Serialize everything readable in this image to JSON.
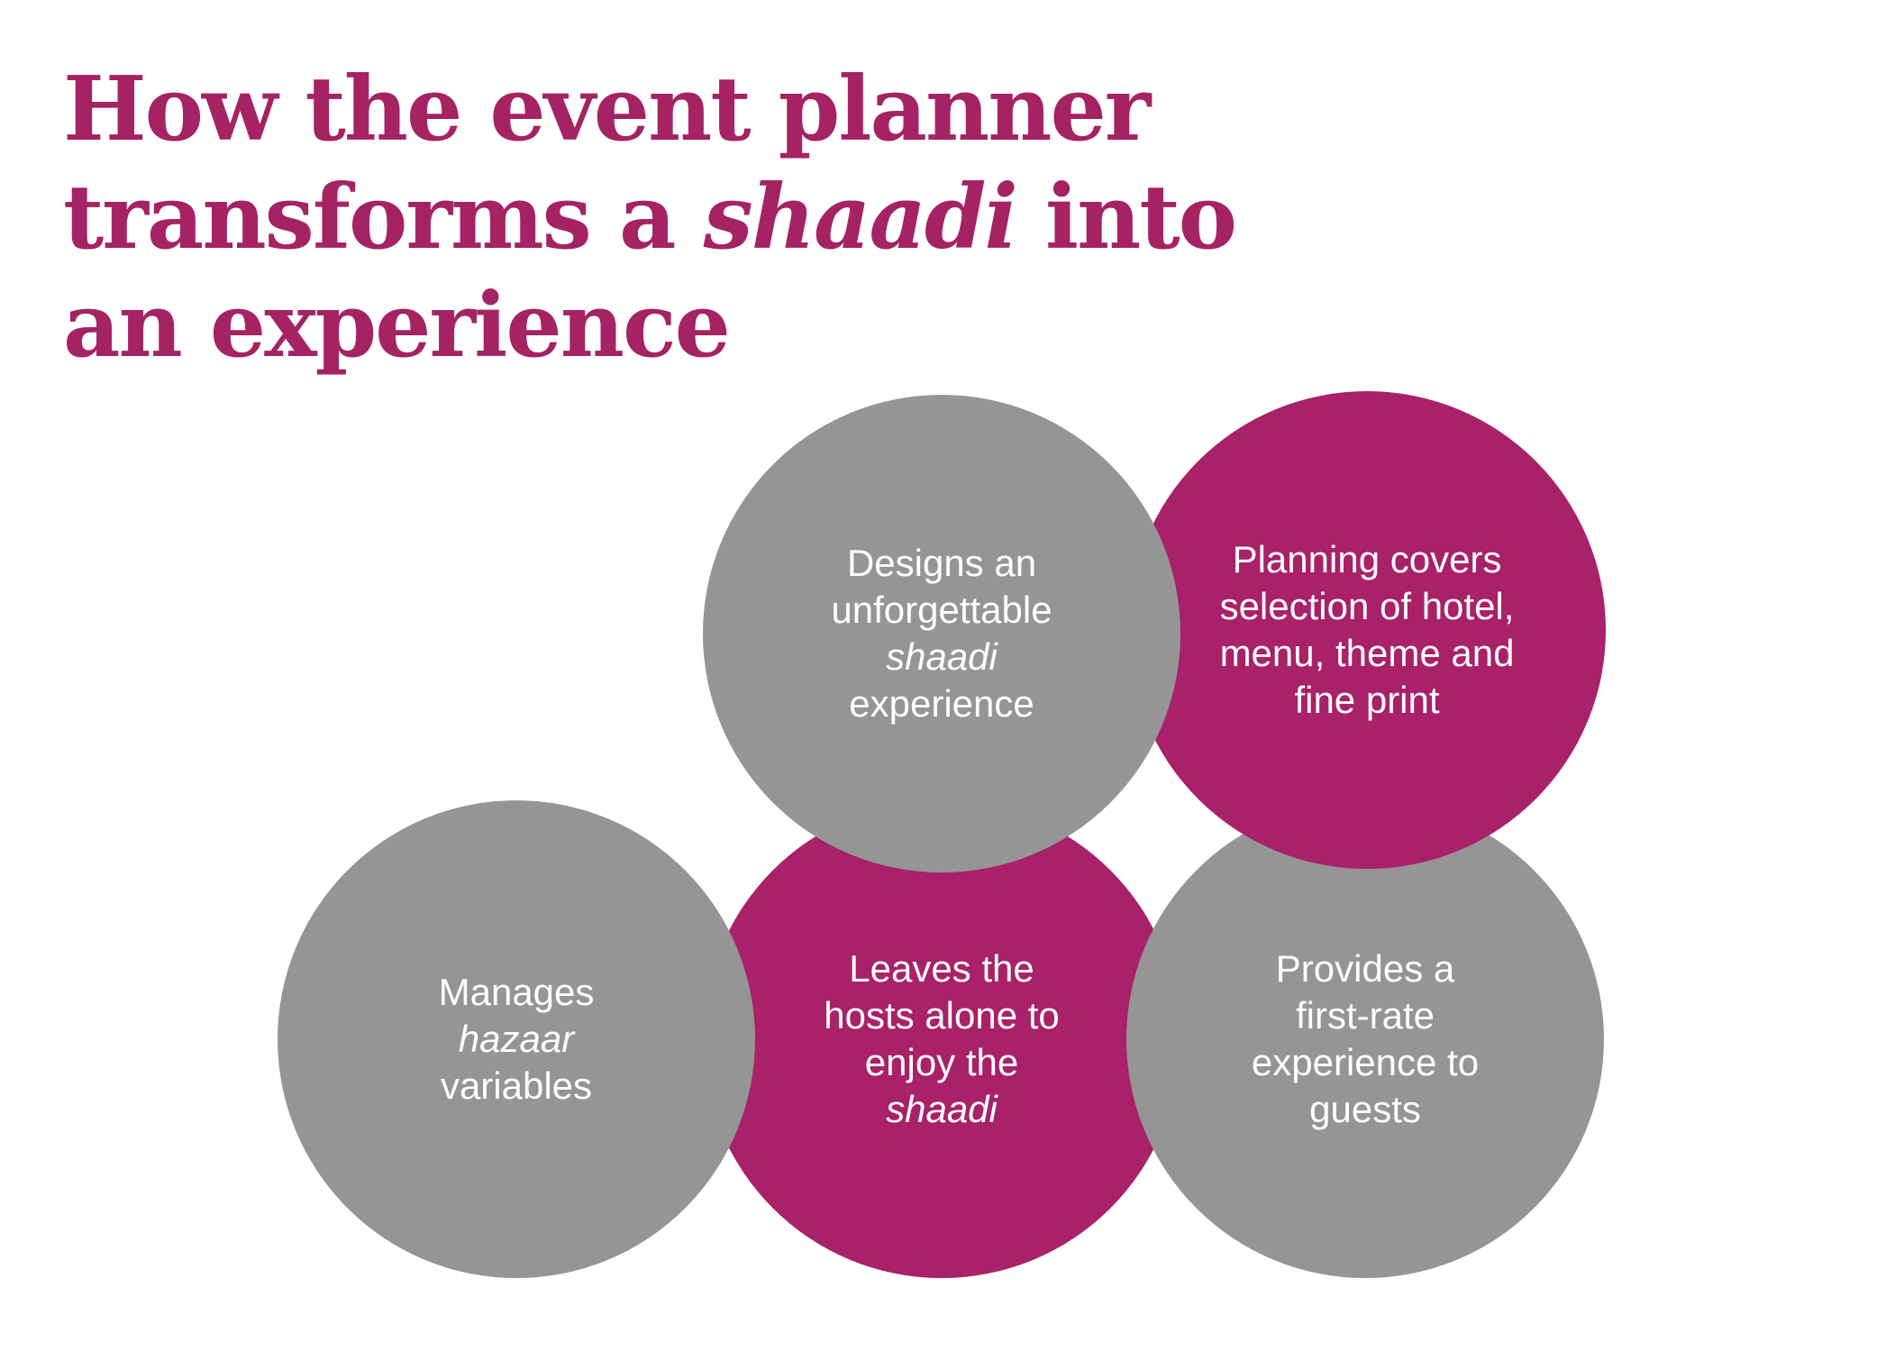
{
  "title": {
    "line1": "How the event planner",
    "line2_before": "transforms a ",
    "line2_italic": "shaadi",
    "line2_after": " into",
    "line3": "an experience"
  },
  "colors": {
    "accent": "#a52363",
    "magenta_circle": "#a92168",
    "gray_circle": "#959595",
    "circle_text": "#ffffff"
  },
  "circles": {
    "designs": {
      "line1": "Designs an",
      "line2": "unforgettable",
      "line3": "shaadi",
      "line4": "experience"
    },
    "planning": {
      "line1": "Planning covers",
      "line2": "selection of hotel,",
      "line3": "menu, theme and",
      "line4": "fine print"
    },
    "manages": {
      "line1": "Manages",
      "line2": "hazaar",
      "line3": "variables"
    },
    "leaves": {
      "line1": "Leaves the",
      "line2": "hosts alone to",
      "line3": "enjoy the",
      "line4": "shaadi"
    },
    "provides": {
      "line1": "Provides a",
      "line2": "first-rate",
      "line3": "experience to",
      "line4": "guests"
    }
  }
}
